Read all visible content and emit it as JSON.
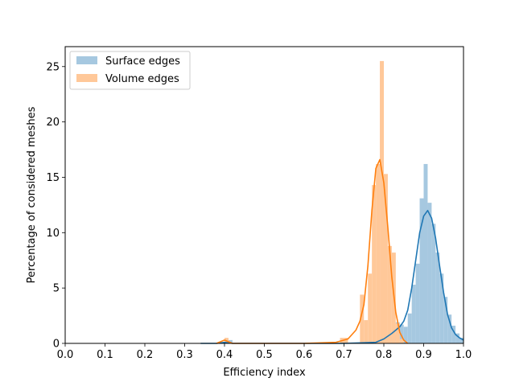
{
  "chart_data": {
    "type": "bar",
    "title": "",
    "xlabel": "Efficiency index",
    "ylabel": "Percentage of considered meshes",
    "xlim": [
      0.0,
      1.0
    ],
    "ylim": [
      0,
      26.8
    ],
    "xticks": [
      "0.0",
      "0.1",
      "0.2",
      "0.3",
      "0.4",
      "0.5",
      "0.6",
      "0.7",
      "0.8",
      "0.9",
      "1.0"
    ],
    "yticks": [
      "0",
      "5",
      "10",
      "15",
      "20",
      "25"
    ],
    "grid": false,
    "legend_position": "upper-left",
    "series": [
      {
        "name": "Surface edges",
        "bar_color": "#a6c8e0",
        "line_color": "#1f77b4",
        "bin_width": 0.01,
        "bins": [
          [
            0.4,
            0.4
          ],
          [
            0.41,
            0.3
          ],
          [
            0.8,
            0.4
          ],
          [
            0.81,
            0.6
          ],
          [
            0.82,
            0.8
          ],
          [
            0.83,
            1.9
          ],
          [
            0.84,
            1.7
          ],
          [
            0.85,
            1.5
          ],
          [
            0.86,
            2.7
          ],
          [
            0.87,
            5.3
          ],
          [
            0.88,
            7.2
          ],
          [
            0.89,
            13.1
          ],
          [
            0.9,
            16.2
          ],
          [
            0.91,
            12.7
          ],
          [
            0.92,
            10.8
          ],
          [
            0.93,
            8.2
          ],
          [
            0.94,
            6.3
          ],
          [
            0.95,
            4.2
          ],
          [
            0.96,
            2.6
          ],
          [
            0.97,
            1.6
          ],
          [
            0.98,
            0.9
          ],
          [
            0.99,
            0.5
          ]
        ],
        "kde": [
          [
            0.34,
            0.0
          ],
          [
            0.38,
            0.0
          ],
          [
            0.4,
            0.1
          ],
          [
            0.42,
            0.0
          ],
          [
            0.5,
            0.0
          ],
          [
            0.6,
            0.0
          ],
          [
            0.7,
            0.0
          ],
          [
            0.78,
            0.1
          ],
          [
            0.8,
            0.4
          ],
          [
            0.82,
            0.9
          ],
          [
            0.84,
            1.5
          ],
          [
            0.85,
            2.0
          ],
          [
            0.86,
            3.0
          ],
          [
            0.87,
            5.0
          ],
          [
            0.88,
            7.5
          ],
          [
            0.89,
            10.0
          ],
          [
            0.9,
            11.5
          ],
          [
            0.91,
            12.0
          ],
          [
            0.92,
            11.3
          ],
          [
            0.93,
            9.5
          ],
          [
            0.94,
            7.0
          ],
          [
            0.95,
            4.6
          ],
          [
            0.96,
            2.6
          ],
          [
            0.97,
            1.4
          ],
          [
            0.98,
            0.8
          ],
          [
            0.99,
            0.5
          ],
          [
            1.0,
            0.3
          ]
        ]
      },
      {
        "name": "Volume edges",
        "bar_color": "#ffc899",
        "line_color": "#ff7f0e",
        "bin_width": 0.01,
        "bins": [
          [
            0.4,
            0.5
          ],
          [
            0.69,
            0.5
          ],
          [
            0.7,
            0.5
          ],
          [
            0.74,
            4.4
          ],
          [
            0.75,
            2.1
          ],
          [
            0.76,
            6.3
          ],
          [
            0.77,
            14.3
          ],
          [
            0.78,
            16.2
          ],
          [
            0.79,
            25.5
          ],
          [
            0.8,
            15.3
          ],
          [
            0.81,
            8.8
          ],
          [
            0.82,
            8.2
          ],
          [
            0.83,
            1.8
          ],
          [
            0.84,
            0.4
          ]
        ],
        "kde": [
          [
            0.38,
            0.0
          ],
          [
            0.4,
            0.3
          ],
          [
            0.42,
            0.0
          ],
          [
            0.5,
            0.0
          ],
          [
            0.6,
            0.0
          ],
          [
            0.68,
            0.1
          ],
          [
            0.71,
            0.4
          ],
          [
            0.73,
            1.2
          ],
          [
            0.74,
            2.0
          ],
          [
            0.75,
            3.5
          ],
          [
            0.76,
            7.0
          ],
          [
            0.77,
            12.0
          ],
          [
            0.78,
            15.8
          ],
          [
            0.79,
            16.6
          ],
          [
            0.8,
            14.5
          ],
          [
            0.81,
            10.5
          ],
          [
            0.82,
            6.0
          ],
          [
            0.83,
            2.8
          ],
          [
            0.84,
            1.0
          ],
          [
            0.85,
            0.3
          ],
          [
            0.86,
            0.0
          ]
        ]
      }
    ]
  }
}
